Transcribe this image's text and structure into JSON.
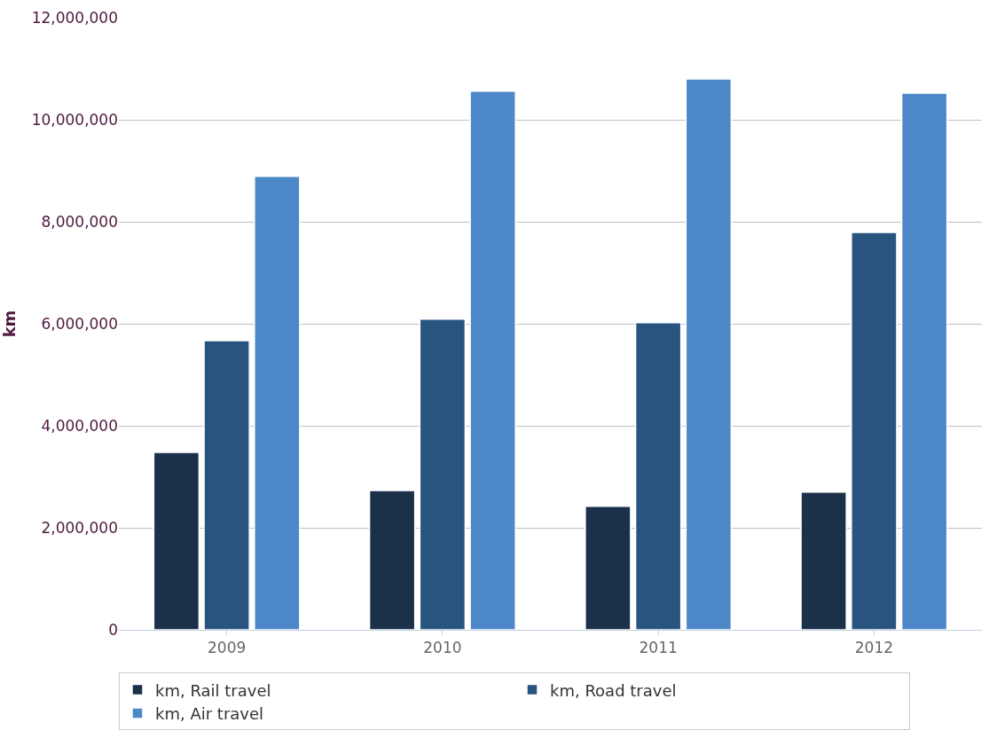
{
  "chart_data": {
    "type": "bar",
    "ylabel": "km",
    "categories": [
      "2009",
      "2010",
      "2011",
      "2012"
    ],
    "series": [
      {
        "name": "km, Rail travel",
        "color": "#1b3049",
        "values": [
          3480000,
          2730000,
          2420000,
          2700000
        ]
      },
      {
        "name": "km, Road travel",
        "color": "#2a5480",
        "values": [
          5670000,
          6090000,
          6020000,
          7790000
        ]
      },
      {
        "name": "km, Air travel",
        "color": "#4d88c8",
        "values": [
          8890000,
          10560000,
          10800000,
          10520000
        ]
      }
    ],
    "ylim": [
      0,
      12000000
    ],
    "yticks": [
      {
        "value": 0,
        "label": "0"
      },
      {
        "value": 2000000,
        "label": "2,000,000"
      },
      {
        "value": 4000000,
        "label": "4,000,000"
      },
      {
        "value": 6000000,
        "label": "6,000,000"
      },
      {
        "value": 8000000,
        "label": "8,000,000"
      },
      {
        "value": 10000000,
        "label": "10,000,000"
      },
      {
        "value": 12000000,
        "label": "12,000,000"
      }
    ],
    "grid": "y",
    "legend": "bottom"
  }
}
